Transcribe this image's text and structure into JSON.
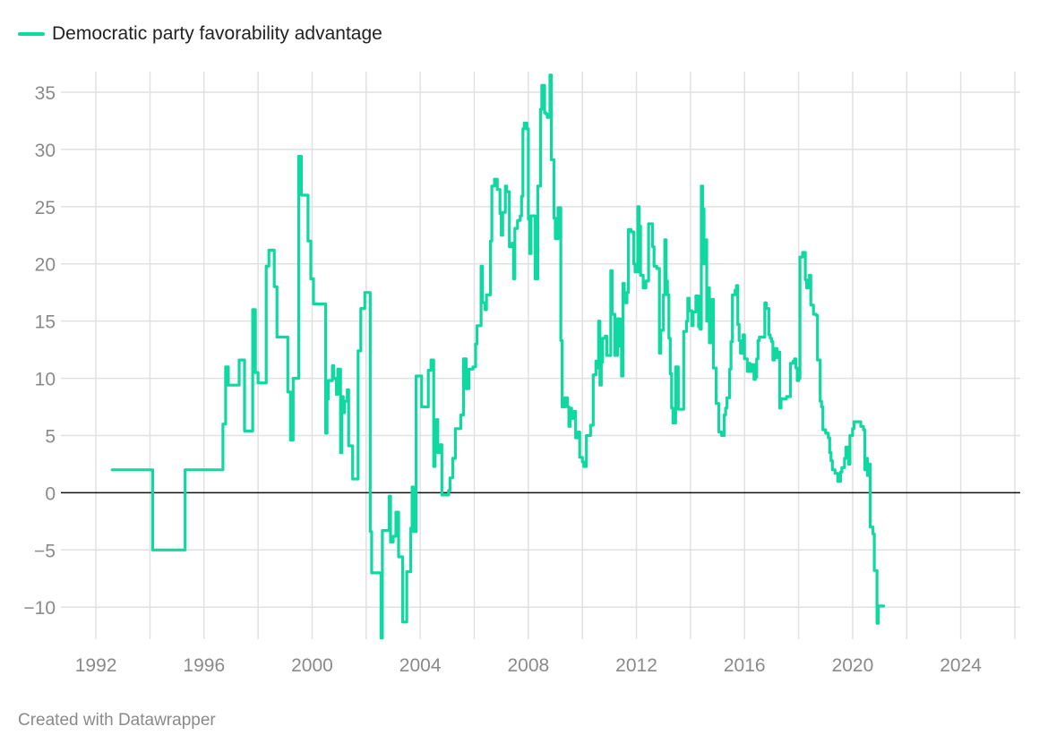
{
  "legend": {
    "label": "Democratic party favorability advantage",
    "color": "#0fd9a0"
  },
  "footer": {
    "credit": "Created with Datawrapper"
  },
  "chart_data": {
    "type": "line",
    "title": "",
    "xlabel": "",
    "ylabel": "",
    "xlim": [
      1991.5,
      2026.2
    ],
    "ylim": [
      -12.8,
      36.8
    ],
    "x_ticks": [
      1992,
      1996,
      2000,
      2004,
      2008,
      2012,
      2016,
      2020,
      2024
    ],
    "y_ticks": [
      -10,
      -5,
      0,
      5,
      10,
      15,
      20,
      25,
      30,
      35
    ],
    "grid": true,
    "series": [
      {
        "name": "Democratic party favorability advantage",
        "color": "#0fd9a0",
        "step": true,
        "points": [
          [
            1992.6,
            2
          ],
          [
            1994.1,
            -5
          ],
          [
            1995.3,
            2
          ],
          [
            1996.7,
            6
          ],
          [
            1996.8,
            11
          ],
          [
            1996.9,
            9.4
          ],
          [
            1997.3,
            11.6
          ],
          [
            1997.5,
            5.4
          ],
          [
            1997.8,
            16
          ],
          [
            1997.9,
            10.5
          ],
          [
            1998.0,
            9.6
          ],
          [
            1998.3,
            19.8
          ],
          [
            1998.4,
            21.2
          ],
          [
            1998.6,
            18
          ],
          [
            1998.7,
            13.6
          ],
          [
            1999.1,
            8.8
          ],
          [
            1999.2,
            4.6
          ],
          [
            1999.3,
            10
          ],
          [
            1999.5,
            29.4
          ],
          [
            1999.6,
            26
          ],
          [
            1999.85,
            22
          ],
          [
            1999.95,
            18.7
          ],
          [
            2000.05,
            16.5
          ],
          [
            2000.5,
            5.2
          ],
          [
            2000.55,
            8.2
          ],
          [
            2000.6,
            9.8
          ],
          [
            2000.75,
            11.1
          ],
          [
            2000.8,
            10
          ],
          [
            2000.9,
            8.6
          ],
          [
            2000.95,
            10.8
          ],
          [
            2001.05,
            3.5
          ],
          [
            2001.1,
            8.4
          ],
          [
            2001.15,
            7
          ],
          [
            2001.2,
            8
          ],
          [
            2001.3,
            9
          ],
          [
            2001.35,
            4.1
          ],
          [
            2001.5,
            1.2
          ],
          [
            2001.7,
            12.4
          ],
          [
            2001.8,
            16.1
          ],
          [
            2001.95,
            17.5
          ],
          [
            2002.15,
            -3.4
          ],
          [
            2002.2,
            -7
          ],
          [
            2002.55,
            -12.7
          ],
          [
            2002.6,
            -3.3
          ],
          [
            2002.85,
            -0.3
          ],
          [
            2002.9,
            -4.3
          ],
          [
            2003.0,
            -3.8
          ],
          [
            2003.1,
            -1.7
          ],
          [
            2003.2,
            -5.6
          ],
          [
            2003.35,
            -11.3
          ],
          [
            2003.5,
            -6.9
          ],
          [
            2003.65,
            -3.1
          ],
          [
            2003.7,
            0.5
          ],
          [
            2003.75,
            -3.4
          ],
          [
            2003.85,
            10.2
          ],
          [
            2004.05,
            7.5
          ],
          [
            2004.3,
            10.7
          ],
          [
            2004.4,
            11.6
          ],
          [
            2004.5,
            2.3
          ],
          [
            2004.55,
            3.8
          ],
          [
            2004.6,
            6.4
          ],
          [
            2004.65,
            3.5
          ],
          [
            2004.75,
            4.2
          ],
          [
            2004.8,
            -0.2
          ],
          [
            2005.05,
            0.2
          ],
          [
            2005.1,
            1.3
          ],
          [
            2005.2,
            3
          ],
          [
            2005.3,
            5.6
          ],
          [
            2005.5,
            6.8
          ],
          [
            2005.6,
            11.7
          ],
          [
            2005.7,
            9.1
          ],
          [
            2005.8,
            10.8
          ],
          [
            2005.95,
            11
          ],
          [
            2006.05,
            13
          ],
          [
            2006.1,
            14.6
          ],
          [
            2006.25,
            19.8
          ],
          [
            2006.3,
            16.6
          ],
          [
            2006.4,
            16
          ],
          [
            2006.45,
            17.3
          ],
          [
            2006.6,
            22
          ],
          [
            2006.65,
            26.8
          ],
          [
            2006.75,
            27.4
          ],
          [
            2006.85,
            26.5
          ],
          [
            2006.95,
            24.4
          ],
          [
            2007.0,
            22.5
          ],
          [
            2007.05,
            24.5
          ],
          [
            2007.15,
            26.8
          ],
          [
            2007.2,
            26.3
          ],
          [
            2007.3,
            21.5
          ],
          [
            2007.4,
            21.8
          ],
          [
            2007.45,
            18.7
          ],
          [
            2007.5,
            23.1
          ],
          [
            2007.6,
            23.8
          ],
          [
            2007.7,
            24.2
          ],
          [
            2007.75,
            25.9
          ],
          [
            2007.8,
            31.8
          ],
          [
            2007.85,
            32.3
          ],
          [
            2007.95,
            31.8
          ],
          [
            2008.0,
            23.9
          ],
          [
            2008.05,
            20.9
          ],
          [
            2008.1,
            24.2
          ],
          [
            2008.25,
            18.7
          ],
          [
            2008.35,
            26.8
          ],
          [
            2008.45,
            33.5
          ],
          [
            2008.5,
            35.6
          ],
          [
            2008.6,
            33.2
          ],
          [
            2008.65,
            33.1
          ],
          [
            2008.7,
            32.8
          ],
          [
            2008.8,
            36.5
          ],
          [
            2008.85,
            29.1
          ],
          [
            2008.95,
            24
          ],
          [
            2009.0,
            22.2
          ],
          [
            2009.1,
            24.9
          ],
          [
            2009.2,
            13.3
          ],
          [
            2009.25,
            7.5
          ],
          [
            2009.35,
            8.3
          ],
          [
            2009.45,
            7.5
          ],
          [
            2009.5,
            5.8
          ],
          [
            2009.55,
            7.4
          ],
          [
            2009.6,
            6.5
          ],
          [
            2009.7,
            7.1
          ],
          [
            2009.75,
            4.8
          ],
          [
            2009.85,
            5.3
          ],
          [
            2009.9,
            3.1
          ],
          [
            2010.0,
            2.7
          ],
          [
            2010.05,
            2.3
          ],
          [
            2010.15,
            5
          ],
          [
            2010.3,
            5.9
          ],
          [
            2010.4,
            10.3
          ],
          [
            2010.5,
            11.5
          ],
          [
            2010.55,
            10.9
          ],
          [
            2010.6,
            15
          ],
          [
            2010.65,
            9.4
          ],
          [
            2010.7,
            11.4
          ],
          [
            2010.75,
            13.5
          ],
          [
            2010.85,
            13.7
          ],
          [
            2010.9,
            12
          ],
          [
            2011.05,
            19.4
          ],
          [
            2011.1,
            15.6
          ],
          [
            2011.2,
            12
          ],
          [
            2011.3,
            15.2
          ],
          [
            2011.4,
            12.8
          ],
          [
            2011.45,
            10.2
          ],
          [
            2011.5,
            18.3
          ],
          [
            2011.55,
            16.6
          ],
          [
            2011.65,
            17.5
          ],
          [
            2011.7,
            23
          ],
          [
            2011.8,
            22.8
          ],
          [
            2011.9,
            20
          ],
          [
            2011.95,
            19.3
          ],
          [
            2012.05,
            25
          ],
          [
            2012.1,
            23.3
          ],
          [
            2012.15,
            19
          ],
          [
            2012.25,
            17.9
          ],
          [
            2012.35,
            18.5
          ],
          [
            2012.45,
            23.5
          ],
          [
            2012.6,
            21.5
          ],
          [
            2012.65,
            19.8
          ],
          [
            2012.75,
            19.6
          ],
          [
            2012.85,
            12.2
          ],
          [
            2012.9,
            14.2
          ],
          [
            2013.0,
            17.3
          ],
          [
            2013.05,
            22.1
          ],
          [
            2013.1,
            18.5
          ],
          [
            2013.15,
            17.3
          ],
          [
            2013.2,
            13.5
          ],
          [
            2013.25,
            10.4
          ],
          [
            2013.3,
            7.4
          ],
          [
            2013.35,
            6.1
          ],
          [
            2013.45,
            11
          ],
          [
            2013.55,
            7.3
          ],
          [
            2013.75,
            14.1
          ],
          [
            2013.85,
            15
          ],
          [
            2013.9,
            17
          ],
          [
            2013.95,
            15.9
          ],
          [
            2014.05,
            14.6
          ],
          [
            2014.1,
            15.8
          ],
          [
            2014.2,
            17.2
          ],
          [
            2014.3,
            14.5
          ],
          [
            2014.35,
            14.3
          ],
          [
            2014.4,
            26.8
          ],
          [
            2014.45,
            24.8
          ],
          [
            2014.5,
            20
          ],
          [
            2014.55,
            22.1
          ],
          [
            2014.6,
            15
          ],
          [
            2014.65,
            17.9
          ],
          [
            2014.7,
            13.1
          ],
          [
            2014.8,
            16.9
          ],
          [
            2014.85,
            10.9
          ],
          [
            2014.95,
            7.8
          ],
          [
            2015.05,
            5.3
          ],
          [
            2015.15,
            5
          ],
          [
            2015.25,
            6.8
          ],
          [
            2015.3,
            7.4
          ],
          [
            2015.35,
            8.3
          ],
          [
            2015.45,
            10.8
          ],
          [
            2015.5,
            13.2
          ],
          [
            2015.55,
            17.3
          ],
          [
            2015.65,
            17.7
          ],
          [
            2015.7,
            18.1
          ],
          [
            2015.75,
            14.7
          ],
          [
            2015.8,
            13.3
          ],
          [
            2015.85,
            12.2
          ],
          [
            2015.95,
            13.8
          ],
          [
            2016.0,
            11.7
          ],
          [
            2016.1,
            10.6
          ],
          [
            2016.15,
            11.3
          ],
          [
            2016.2,
            10.6
          ],
          [
            2016.3,
            11.2
          ],
          [
            2016.35,
            9.9
          ],
          [
            2016.4,
            10.1
          ],
          [
            2016.45,
            11.7
          ],
          [
            2016.5,
            13.3
          ],
          [
            2016.55,
            13.6
          ],
          [
            2016.75,
            16.6
          ],
          [
            2016.8,
            16.1
          ],
          [
            2016.9,
            13.8
          ],
          [
            2016.95,
            13.5
          ],
          [
            2017.0,
            13.2
          ],
          [
            2017.05,
            11.6
          ],
          [
            2017.1,
            12.6
          ],
          [
            2017.2,
            11.8
          ],
          [
            2017.25,
            12.3
          ],
          [
            2017.3,
            7.4
          ],
          [
            2017.35,
            8.2
          ],
          [
            2017.55,
            8.4
          ],
          [
            2017.7,
            11.3
          ],
          [
            2017.8,
            11.5
          ],
          [
            2017.85,
            11.7
          ],
          [
            2017.9,
            10.9
          ],
          [
            2017.95,
            9.8
          ],
          [
            2018.0,
            10
          ],
          [
            2018.05,
            20.6
          ],
          [
            2018.15,
            21
          ],
          [
            2018.25,
            18.6
          ],
          [
            2018.3,
            17.9
          ],
          [
            2018.35,
            18.2
          ],
          [
            2018.4,
            19
          ],
          [
            2018.45,
            16.4
          ],
          [
            2018.55,
            15.6
          ],
          [
            2018.65,
            15.5
          ],
          [
            2018.7,
            11.6
          ],
          [
            2018.8,
            8
          ],
          [
            2018.85,
            7.5
          ],
          [
            2018.9,
            5.5
          ],
          [
            2019.0,
            5.2
          ],
          [
            2019.1,
            4.8
          ],
          [
            2019.15,
            3.5
          ],
          [
            2019.2,
            2.8
          ],
          [
            2019.25,
            2
          ],
          [
            2019.35,
            1.7
          ],
          [
            2019.45,
            1
          ],
          [
            2019.55,
            1.8
          ],
          [
            2019.6,
            2.2
          ],
          [
            2019.7,
            3
          ],
          [
            2019.75,
            4
          ],
          [
            2019.85,
            2.5
          ],
          [
            2019.9,
            5
          ],
          [
            2020.0,
            5.6
          ],
          [
            2020.05,
            6.2
          ],
          [
            2020.3,
            5.8
          ],
          [
            2020.4,
            5.5
          ],
          [
            2020.45,
            2
          ],
          [
            2020.5,
            3
          ],
          [
            2020.55,
            1.5
          ],
          [
            2020.6,
            2.5
          ],
          [
            2020.65,
            -3
          ],
          [
            2020.75,
            -3.6
          ],
          [
            2020.8,
            -6.8
          ],
          [
            2020.9,
            -11.4
          ],
          [
            2020.95,
            -9.9
          ],
          [
            2021.15,
            -9.9
          ]
        ]
      }
    ]
  }
}
